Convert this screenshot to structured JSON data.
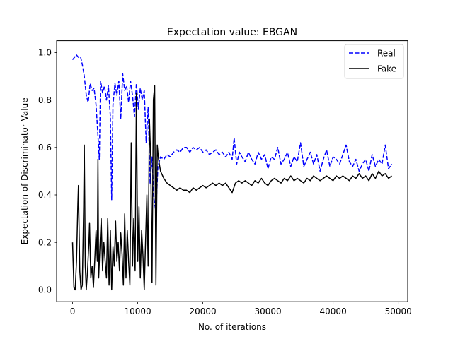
{
  "chart_data": {
    "type": "line",
    "title": "Expectation value: EBGAN",
    "xlabel": "No. of iterations",
    "ylabel": "Expectation of Discriminator Value",
    "xlim": [
      -2450,
      51450
    ],
    "ylim": [
      -0.05,
      1.05
    ],
    "xticks": [
      0,
      10000,
      20000,
      30000,
      40000,
      50000
    ],
    "xtick_labels": [
      "0",
      "10000",
      "20000",
      "30000",
      "40000",
      "50000"
    ],
    "yticks": [
      0.0,
      0.2,
      0.4,
      0.6,
      0.8,
      1.0
    ],
    "ytick_labels": [
      "0.0",
      "0.2",
      "0.4",
      "0.6",
      "0.8",
      "1.0"
    ],
    "grid": false,
    "legend_position": "top-right",
    "series": [
      {
        "name": "Real",
        "color": "#0000ff",
        "style": "dashed",
        "points": [
          [
            0,
            0.97
          ],
          [
            300,
            0.98
          ],
          [
            600,
            0.99
          ],
          [
            900,
            0.98
          ],
          [
            1200,
            0.985
          ],
          [
            1500,
            0.95
          ],
          [
            1800,
            0.9
          ],
          [
            2100,
            0.82
          ],
          [
            2400,
            0.79
          ],
          [
            2700,
            0.87
          ],
          [
            3000,
            0.84
          ],
          [
            3300,
            0.85
          ],
          [
            3600,
            0.78
          ],
          [
            3900,
            0.65
          ],
          [
            4100,
            0.55
          ],
          [
            4300,
            0.88
          ],
          [
            4600,
            0.83
          ],
          [
            4900,
            0.86
          ],
          [
            5200,
            0.8
          ],
          [
            5500,
            0.86
          ],
          [
            5800,
            0.73
          ],
          [
            6000,
            0.38
          ],
          [
            6200,
            0.78
          ],
          [
            6500,
            0.87
          ],
          [
            6800,
            0.82
          ],
          [
            7100,
            0.88
          ],
          [
            7400,
            0.72
          ],
          [
            7700,
            0.91
          ],
          [
            8000,
            0.84
          ],
          [
            8300,
            0.86
          ],
          [
            8600,
            0.79
          ],
          [
            8900,
            0.88
          ],
          [
            9200,
            0.82
          ],
          [
            9500,
            0.73
          ],
          [
            9800,
            0.87
          ],
          [
            10100,
            0.76
          ],
          [
            10400,
            0.85
          ],
          [
            10700,
            0.8
          ],
          [
            11000,
            0.84
          ],
          [
            11300,
            0.62
          ],
          [
            11600,
            0.77
          ],
          [
            11900,
            0.45
          ],
          [
            12200,
            0.56
          ],
          [
            12500,
            0.38
          ],
          [
            12800,
            0.33
          ],
          [
            13100,
            0.52
          ],
          [
            13500,
            0.56
          ],
          [
            14000,
            0.55
          ],
          [
            14500,
            0.57
          ],
          [
            15000,
            0.56
          ],
          [
            15500,
            0.58
          ],
          [
            16000,
            0.59
          ],
          [
            16500,
            0.58
          ],
          [
            17000,
            0.6
          ],
          [
            17500,
            0.6
          ],
          [
            18000,
            0.58
          ],
          [
            18500,
            0.6
          ],
          [
            19000,
            0.59
          ],
          [
            19500,
            0.6
          ],
          [
            20000,
            0.58
          ],
          [
            20500,
            0.59
          ],
          [
            21000,
            0.57
          ],
          [
            21500,
            0.58
          ],
          [
            22000,
            0.59
          ],
          [
            22500,
            0.57
          ],
          [
            23000,
            0.58
          ],
          [
            23500,
            0.56
          ],
          [
            24000,
            0.58
          ],
          [
            24500,
            0.55
          ],
          [
            24800,
            0.64
          ],
          [
            25200,
            0.53
          ],
          [
            25600,
            0.58
          ],
          [
            26000,
            0.56
          ],
          [
            26500,
            0.54
          ],
          [
            27000,
            0.58
          ],
          [
            27500,
            0.55
          ],
          [
            28000,
            0.53
          ],
          [
            28500,
            0.58
          ],
          [
            29000,
            0.55
          ],
          [
            29500,
            0.57
          ],
          [
            30000,
            0.51
          ],
          [
            30500,
            0.56
          ],
          [
            31000,
            0.55
          ],
          [
            31500,
            0.6
          ],
          [
            32000,
            0.53
          ],
          [
            32500,
            0.55
          ],
          [
            33000,
            0.58
          ],
          [
            33500,
            0.52
          ],
          [
            34000,
            0.56
          ],
          [
            34500,
            0.54
          ],
          [
            35000,
            0.62
          ],
          [
            35500,
            0.52
          ],
          [
            36000,
            0.55
          ],
          [
            36500,
            0.58
          ],
          [
            37000,
            0.53
          ],
          [
            37500,
            0.57
          ],
          [
            38000,
            0.5
          ],
          [
            38500,
            0.55
          ],
          [
            39000,
            0.59
          ],
          [
            39500,
            0.52
          ],
          [
            40000,
            0.56
          ],
          [
            40500,
            0.55
          ],
          [
            41000,
            0.53
          ],
          [
            41500,
            0.57
          ],
          [
            42000,
            0.61
          ],
          [
            42500,
            0.54
          ],
          [
            43000,
            0.52
          ],
          [
            43500,
            0.55
          ],
          [
            44000,
            0.5
          ],
          [
            44500,
            0.53
          ],
          [
            45000,
            0.55
          ],
          [
            45500,
            0.5
          ],
          [
            46000,
            0.57
          ],
          [
            46500,
            0.52
          ],
          [
            47000,
            0.55
          ],
          [
            47500,
            0.53
          ],
          [
            48000,
            0.61
          ],
          [
            48500,
            0.51
          ],
          [
            49000,
            0.53
          ]
        ]
      },
      {
        "name": "Fake",
        "color": "#000000",
        "style": "solid",
        "points": [
          [
            0,
            0.2
          ],
          [
            200,
            0.01
          ],
          [
            400,
            0.0
          ],
          [
            600,
            0.12
          ],
          [
            800,
            0.35
          ],
          [
            900,
            0.44
          ],
          [
            1100,
            0.08
          ],
          [
            1300,
            0.0
          ],
          [
            1500,
            0.02
          ],
          [
            1700,
            0.35
          ],
          [
            1800,
            0.61
          ],
          [
            1950,
            0.1
          ],
          [
            2100,
            0.0
          ],
          [
            2300,
            0.08
          ],
          [
            2500,
            0.2
          ],
          [
            2600,
            0.28
          ],
          [
            2800,
            0.05
          ],
          [
            3000,
            0.1
          ],
          [
            3200,
            0.01
          ],
          [
            3400,
            0.12
          ],
          [
            3600,
            0.25
          ],
          [
            3800,
            0.12
          ],
          [
            3900,
            0.55
          ],
          [
            4000,
            0.05
          ],
          [
            4200,
            0.18
          ],
          [
            4400,
            0.3
          ],
          [
            4600,
            0.08
          ],
          [
            4800,
            0.2
          ],
          [
            5000,
            0.12
          ],
          [
            5200,
            0.05
          ],
          [
            5400,
            0.3
          ],
          [
            5600,
            0.02
          ],
          [
            5800,
            0.25
          ],
          [
            6000,
            0.0
          ],
          [
            6200,
            0.18
          ],
          [
            6400,
            0.1
          ],
          [
            6600,
            0.29
          ],
          [
            6800,
            0.12
          ],
          [
            7000,
            0.2
          ],
          [
            7200,
            0.08
          ],
          [
            7400,
            0.24
          ],
          [
            7600,
            0.15
          ],
          [
            7800,
            0.02
          ],
          [
            8000,
            0.32
          ],
          [
            8200,
            0.05
          ],
          [
            8400,
            0.25
          ],
          [
            8600,
            0.12
          ],
          [
            8800,
            0.02
          ],
          [
            9000,
            0.62
          ],
          [
            9200,
            0.1
          ],
          [
            9400,
            0.3
          ],
          [
            9600,
            0.08
          ],
          [
            9800,
            0.83
          ],
          [
            10000,
            0.12
          ],
          [
            10200,
            0.35
          ],
          [
            10400,
            0.05
          ],
          [
            10600,
            0.25
          ],
          [
            10800,
            0.15
          ],
          [
            11000,
            0.0
          ],
          [
            11200,
            0.2
          ],
          [
            11400,
            0.4
          ],
          [
            11600,
            0.1
          ],
          [
            11800,
            0.72
          ],
          [
            12000,
            0.55
          ],
          [
            12200,
            0.03
          ],
          [
            12400,
            0.8
          ],
          [
            12600,
            0.86
          ],
          [
            12800,
            0.02
          ],
          [
            13000,
            0.61
          ],
          [
            13200,
            0.55
          ],
          [
            13500,
            0.5
          ],
          [
            14000,
            0.47
          ],
          [
            14500,
            0.45
          ],
          [
            15000,
            0.44
          ],
          [
            15500,
            0.43
          ],
          [
            16000,
            0.42
          ],
          [
            16500,
            0.43
          ],
          [
            17000,
            0.42
          ],
          [
            17500,
            0.42
          ],
          [
            18000,
            0.41
          ],
          [
            18500,
            0.43
          ],
          [
            19000,
            0.42
          ],
          [
            19500,
            0.43
          ],
          [
            20000,
            0.44
          ],
          [
            20500,
            0.43
          ],
          [
            21000,
            0.44
          ],
          [
            21500,
            0.45
          ],
          [
            22000,
            0.44
          ],
          [
            22500,
            0.45
          ],
          [
            23000,
            0.44
          ],
          [
            23500,
            0.45
          ],
          [
            24000,
            0.43
          ],
          [
            24500,
            0.41
          ],
          [
            25000,
            0.45
          ],
          [
            25500,
            0.46
          ],
          [
            26000,
            0.45
          ],
          [
            26500,
            0.46
          ],
          [
            27000,
            0.45
          ],
          [
            27500,
            0.44
          ],
          [
            28000,
            0.46
          ],
          [
            28500,
            0.45
          ],
          [
            29000,
            0.47
          ],
          [
            29500,
            0.45
          ],
          [
            30000,
            0.44
          ],
          [
            30500,
            0.46
          ],
          [
            31000,
            0.47
          ],
          [
            31500,
            0.46
          ],
          [
            32000,
            0.45
          ],
          [
            32500,
            0.47
          ],
          [
            33000,
            0.46
          ],
          [
            33500,
            0.48
          ],
          [
            34000,
            0.46
          ],
          [
            34500,
            0.47
          ],
          [
            35000,
            0.46
          ],
          [
            35500,
            0.45
          ],
          [
            36000,
            0.47
          ],
          [
            36500,
            0.46
          ],
          [
            37000,
            0.48
          ],
          [
            37500,
            0.47
          ],
          [
            38000,
            0.46
          ],
          [
            38500,
            0.47
          ],
          [
            39000,
            0.48
          ],
          [
            39500,
            0.47
          ],
          [
            40000,
            0.46
          ],
          [
            40500,
            0.48
          ],
          [
            41000,
            0.47
          ],
          [
            41500,
            0.48
          ],
          [
            42000,
            0.47
          ],
          [
            42500,
            0.46
          ],
          [
            43000,
            0.48
          ],
          [
            43500,
            0.47
          ],
          [
            44000,
            0.49
          ],
          [
            44500,
            0.47
          ],
          [
            45000,
            0.48
          ],
          [
            45500,
            0.46
          ],
          [
            46000,
            0.49
          ],
          [
            46500,
            0.47
          ],
          [
            47000,
            0.5
          ],
          [
            47500,
            0.48
          ],
          [
            48000,
            0.49
          ],
          [
            48500,
            0.47
          ],
          [
            49000,
            0.48
          ]
        ]
      }
    ]
  }
}
